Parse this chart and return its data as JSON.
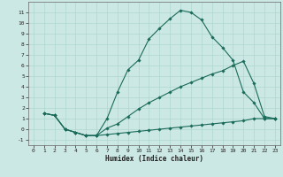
{
  "xlabel": "Humidex (Indice chaleur)",
  "background_color": "#cce8e4",
  "line_color": "#1a6b5a",
  "xlim": [
    -0.5,
    23.5
  ],
  "ylim": [
    -1.5,
    12.0
  ],
  "xticks": [
    0,
    1,
    2,
    3,
    4,
    5,
    6,
    7,
    8,
    9,
    10,
    11,
    12,
    13,
    14,
    15,
    16,
    17,
    18,
    19,
    20,
    21,
    22,
    23
  ],
  "yticks": [
    -1,
    0,
    1,
    2,
    3,
    4,
    5,
    6,
    7,
    8,
    9,
    10,
    11
  ],
  "series": [
    {
      "x": [
        1,
        2,
        3,
        4,
        5,
        6,
        7,
        8,
        9,
        10,
        11,
        12,
        13,
        14,
        15,
        16,
        17,
        18,
        19,
        20,
        21,
        22,
        23
      ],
      "y": [
        1.5,
        1.3,
        0.0,
        -0.3,
        -0.6,
        -0.6,
        1.0,
        3.5,
        5.6,
        6.5,
        8.5,
        9.5,
        10.4,
        11.2,
        11.0,
        10.3,
        8.7,
        7.7,
        6.5,
        3.5,
        2.5,
        1.0,
        1.0
      ]
    },
    {
      "x": [
        1,
        2,
        3,
        4,
        5,
        6,
        7,
        8,
        9,
        10,
        11,
        12,
        13,
        14,
        15,
        16,
        17,
        18,
        19,
        20,
        21,
        22,
        23
      ],
      "y": [
        1.5,
        1.3,
        0.0,
        -0.3,
        -0.6,
        -0.6,
        0.1,
        0.5,
        1.2,
        1.9,
        2.5,
        3.0,
        3.5,
        4.0,
        4.4,
        4.8,
        5.2,
        5.5,
        6.0,
        6.4,
        4.3,
        1.2,
        1.0
      ]
    },
    {
      "x": [
        1,
        2,
        3,
        4,
        5,
        6,
        7,
        8,
        9,
        10,
        11,
        12,
        13,
        14,
        15,
        16,
        17,
        18,
        19,
        20,
        21,
        22,
        23
      ],
      "y": [
        1.5,
        1.3,
        0.0,
        -0.3,
        -0.6,
        -0.6,
        -0.5,
        -0.4,
        -0.3,
        -0.2,
        -0.1,
        0.0,
        0.1,
        0.2,
        0.3,
        0.4,
        0.5,
        0.6,
        0.7,
        0.8,
        1.0,
        1.0,
        1.0
      ]
    }
  ]
}
